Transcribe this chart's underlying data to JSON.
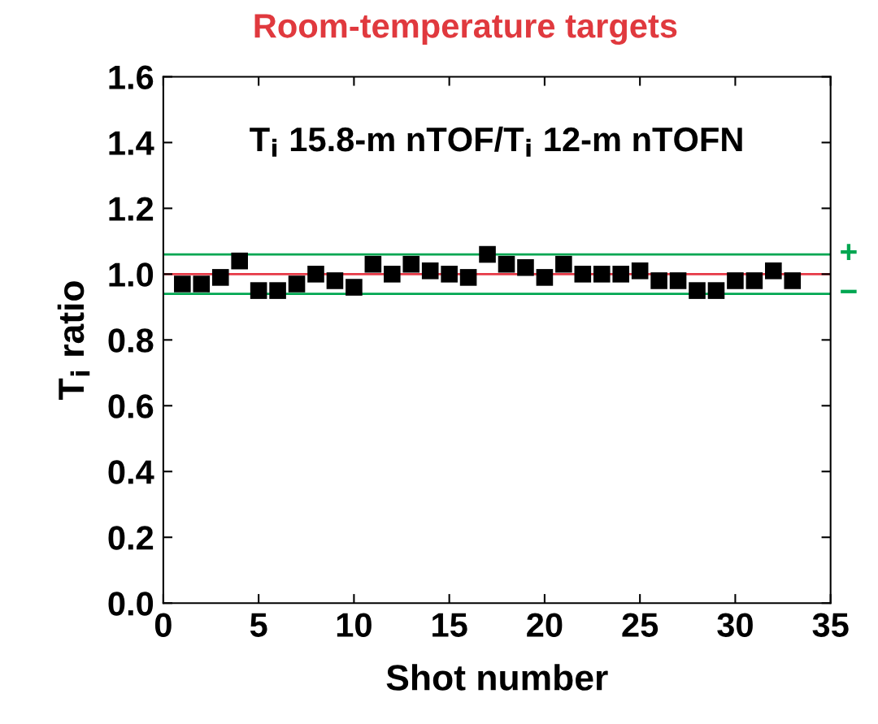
{
  "chart_data": {
    "type": "scatter",
    "title": "Room-temperature targets",
    "xlabel": "Shot number",
    "ylabel": "T$_{i}$ ratio",
    "annotations": [
      "T$_{i}$ 15.8-m nTOF/T$_{i}$ 12-m nTOFN"
    ],
    "x": [
      1,
      2,
      3,
      4,
      5,
      6,
      7,
      8,
      9,
      10,
      11,
      12,
      13,
      14,
      15,
      16,
      17,
      18,
      19,
      20,
      21,
      22,
      23,
      24,
      25,
      26,
      27,
      28,
      29,
      30,
      31,
      32,
      33
    ],
    "series": [
      {
        "color": "#000000",
        "values": [
          0.97,
          0.97,
          0.99,
          1.04,
          0.95,
          0.95,
          0.97,
          1.0,
          0.98,
          0.96,
          1.03,
          1.0,
          1.03,
          1.01,
          1.0,
          0.99,
          1.06,
          1.03,
          1.02,
          0.99,
          1.03,
          1.0,
          1.0,
          1.0,
          1.01,
          0.98,
          0.98,
          0.95,
          0.95,
          0.98,
          0.98,
          1.01,
          0.98
        ]
      }
    ],
    "marker": "square",
    "xlim": [
      0,
      35
    ],
    "ylim": [
      0,
      1.6
    ],
    "xticks": [
      0,
      5,
      10,
      15,
      20,
      25,
      30,
      35
    ],
    "yticks": [
      {
        "value": 0,
        "label": "0.0"
      },
      0.2,
      0.4,
      0.6,
      0.8,
      {
        "value": 1,
        "label": "1.0"
      },
      1.2,
      1.4,
      1.6
    ],
    "ref_lines": [
      {
        "axis": "y",
        "value": 1.06,
        "label": "+",
        "color": "#00a651"
      },
      {
        "axis": "y",
        "value": 1.0,
        "color": "#e63946"
      },
      {
        "axis": "y",
        "value": 0.94,
        "label": "−",
        "color": "#00a651"
      }
    ],
    "grid": false,
    "legend": false
  }
}
